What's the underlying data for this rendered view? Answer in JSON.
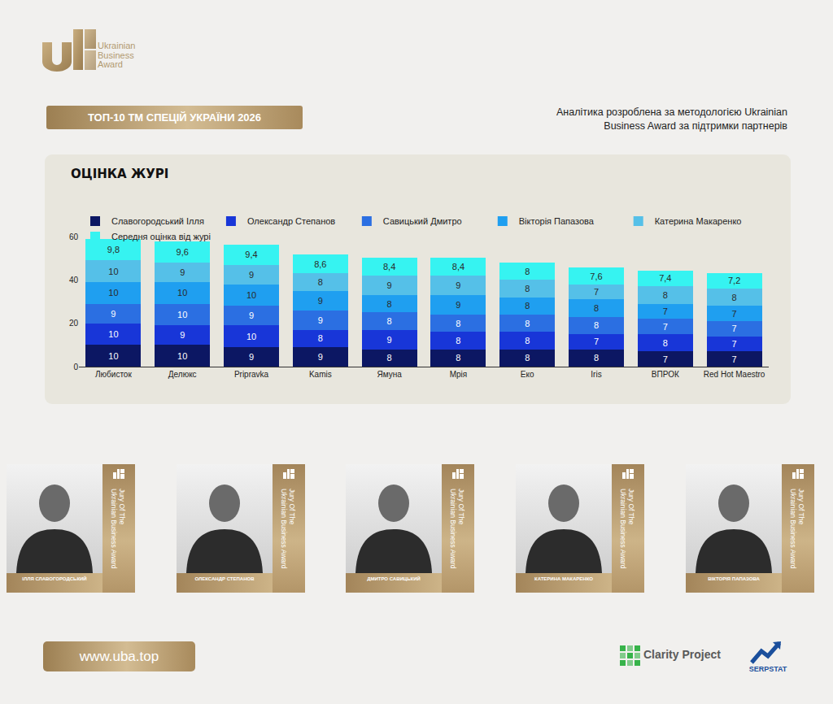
{
  "header": {
    "logo": [
      "Ukrainian",
      "Business",
      "Award"
    ],
    "title": "ТОП-10 ТМ СПЕЦІЙ УКРАЇНИ 2026",
    "note": [
      "Аналітика розроблена за методологією Ukrainian",
      "Business Award за підтримки партнерів"
    ]
  },
  "chart_data": {
    "type": "bar",
    "title": "ОЦІНКА ЖУРІ",
    "categories": [
      "Любисток",
      "Делюкс",
      "Pripravka",
      "Kamis",
      "Ямуна",
      "Мрія",
      "Еко",
      "Iris",
      "ВПРОК",
      "Red Hot Maestro"
    ],
    "series": [
      {
        "name": "Славогородський Ілля",
        "color": "#0c1763",
        "values": [
          10,
          10,
          9,
          9,
          8,
          8,
          8,
          8,
          7,
          7
        ]
      },
      {
        "name": "Олександр Степанов",
        "color": "#1836d8",
        "values": [
          10,
          9,
          10,
          8,
          9,
          8,
          8,
          7,
          8,
          7
        ]
      },
      {
        "name": "Савицький Дмитро",
        "color": "#2b6fe2",
        "values": [
          9,
          10,
          9,
          9,
          8,
          8,
          8,
          8,
          7,
          7
        ]
      },
      {
        "name": "Вікторія Папазова",
        "color": "#1f9ff0",
        "values": [
          10,
          10,
          10,
          9,
          8,
          9,
          8,
          8,
          7,
          7
        ]
      },
      {
        "name": "Катерина Макаренко",
        "color": "#55c0e8",
        "values": [
          10,
          9,
          9,
          8,
          9,
          9,
          8,
          7,
          8,
          8
        ]
      },
      {
        "name": "Середня оцінка від журі",
        "color": "#36f3f1",
        "values": [
          9.8,
          9.6,
          9.4,
          8.6,
          8.4,
          8.4,
          8,
          7.6,
          7.4,
          7.2
        ],
        "value_labels": [
          "9,8",
          "9,6",
          "9,4",
          "8,6",
          "8,4",
          "8,4",
          "8",
          "7,6",
          "7,4",
          "7,2"
        ]
      }
    ],
    "stacked": true,
    "data_labels": true,
    "grid": false,
    "legend": "top-left",
    "ylim": [
      0,
      60
    ],
    "yticks": [
      0,
      20,
      40,
      60
    ]
  },
  "jury": {
    "card_label": [
      "Jury Of The",
      "Ukrainian Business Award"
    ],
    "members": [
      "ІЛЛЯ СЛАВОГОРОДСЬКИЙ",
      "ОЛЕКСАНДР СТЕПАНОВ",
      "ДМИТРО САВИЦЬКИЙ",
      "КАТЕРИНА МАКАРЕНКО",
      "ВІКТОРІЯ ПАПАЗОВА"
    ]
  },
  "footer": {
    "url": "www.uba.top",
    "partners": [
      "Clarity Project",
      "SERPSTAT"
    ]
  }
}
